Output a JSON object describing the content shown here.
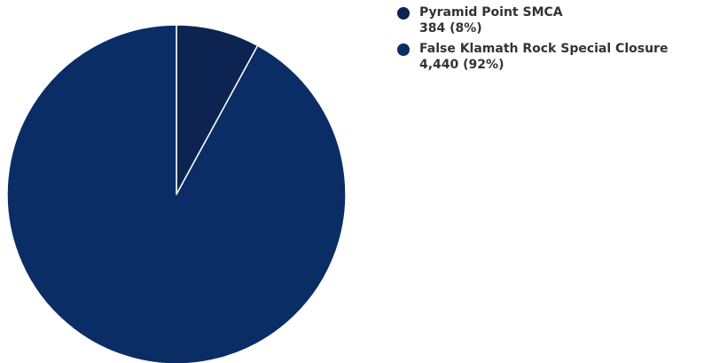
{
  "chart_data": {
    "type": "pie",
    "title": "",
    "legend_position": "top-right",
    "slices": [
      {
        "label": "Pyramid Point SMCA",
        "value": 384,
        "value_text": "384 (8%)",
        "color": "#0d2452"
      },
      {
        "label": "False Klamath Rock Special Closure",
        "value": 4440,
        "value_text": "4,440 (92%)",
        "color": "#0b2d66"
      }
    ]
  }
}
